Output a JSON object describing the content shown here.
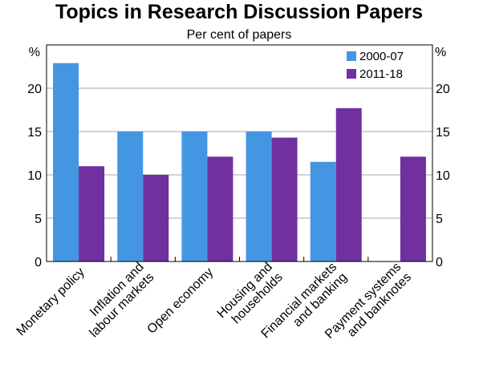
{
  "chart_data": {
    "type": "bar",
    "title": "Topics in Research Discussion Papers",
    "subtitle": "Per cent of papers",
    "y_unit_left": "%",
    "y_unit_right": "%",
    "ylim": [
      0,
      25
    ],
    "yticks": [
      0,
      5,
      10,
      15,
      20
    ],
    "grid": true,
    "legend_position": "top-right",
    "categories": [
      [
        "Monetary policy"
      ],
      [
        "Inflation and",
        "labour markets"
      ],
      [
        "Open economy"
      ],
      [
        "Housing and",
        "households"
      ],
      [
        "Financial markets",
        "and banking"
      ],
      [
        "Payment systems",
        "and banknotes"
      ]
    ],
    "series": [
      {
        "name": "2000-07",
        "color": "#4596e2",
        "values": [
          22.9,
          15.0,
          15.0,
          15.0,
          11.5,
          0
        ]
      },
      {
        "name": "2011-18",
        "color": "#7030a0",
        "values": [
          11.0,
          10.0,
          12.1,
          14.3,
          17.7,
          12.1
        ]
      }
    ]
  }
}
